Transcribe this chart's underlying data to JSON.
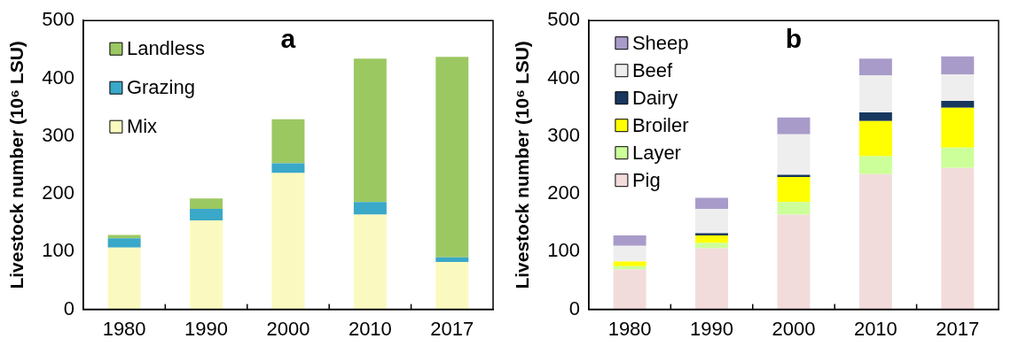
{
  "chart_data": [
    {
      "type": "bar",
      "title": "a",
      "ylabel": "Livestock number (10⁶ LSU)",
      "categories": [
        "1980",
        "1990",
        "2000",
        "2010",
        "2017"
      ],
      "stacked": true,
      "ylim": [
        0,
        500
      ],
      "yticks": [
        0,
        100,
        200,
        300,
        400,
        500
      ],
      "grid": false,
      "legend": "top left",
      "series": [
        {
          "name": "Mix",
          "color": "#fafac0",
          "values": [
            107,
            154,
            236,
            164,
            82
          ]
        },
        {
          "name": "Grazing",
          "color": "#3aa8c8",
          "values": [
            16,
            20,
            17,
            22,
            8
          ]
        },
        {
          "name": "Landless",
          "color": "#9cc862",
          "values": [
            6,
            18,
            76,
            248,
            347
          ]
        }
      ]
    },
    {
      "type": "bar",
      "title": "b",
      "ylabel": "Livestock number (10⁶ LSU)",
      "categories": [
        "1980",
        "1990",
        "2000",
        "2010",
        "2017"
      ],
      "stacked": true,
      "ylim": [
        0,
        500
      ],
      "yticks": [
        0,
        100,
        200,
        300,
        400,
        500
      ],
      "grid": false,
      "legend": "top left",
      "series": [
        {
          "name": "Pig",
          "color": "#f2dcdb",
          "values": [
            69,
            106,
            164,
            234,
            245
          ]
        },
        {
          "name": "Layer",
          "color": "#ccff99",
          "values": [
            6,
            9,
            22,
            31,
            35
          ]
        },
        {
          "name": "Broiler",
          "color": "#ffff00",
          "values": [
            8,
            13,
            43,
            61,
            69
          ]
        },
        {
          "name": "Dairy",
          "color": "#17375e",
          "values": [
            null,
            4,
            4,
            15,
            12
          ]
        },
        {
          "name": "Beef",
          "color": "#eeeeee",
          "values": [
            27,
            42,
            70,
            64,
            46
          ]
        },
        {
          "name": "Sheep",
          "color": "#a99bc9",
          "values": [
            18,
            19,
            29,
            29,
            31
          ]
        }
      ]
    }
  ]
}
